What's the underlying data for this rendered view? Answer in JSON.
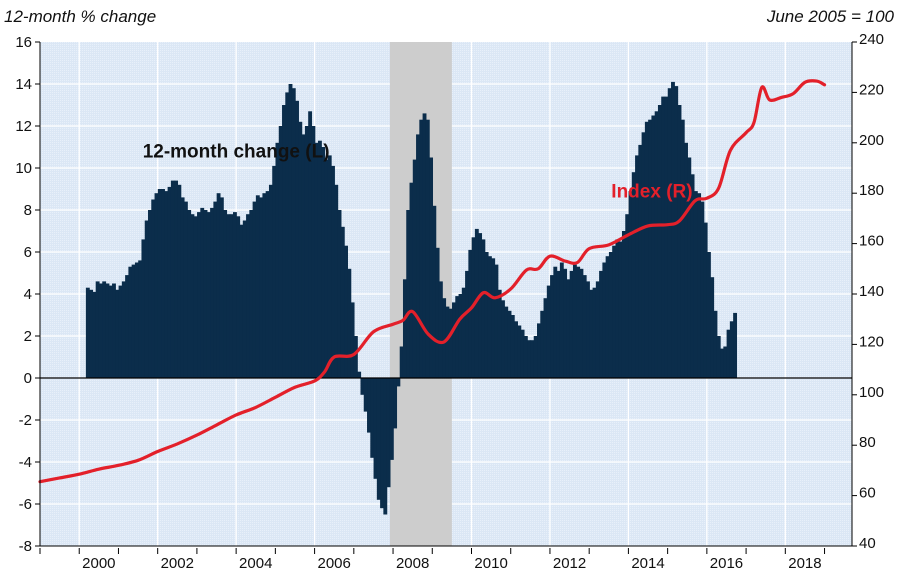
{
  "chart_data": {
    "type": "bar+line",
    "title": "",
    "left_axis_title": "12-month % change",
    "right_axis_title": "June 2005 = 100",
    "left_ylim": [
      -8,
      16
    ],
    "left_yticks": [
      -8,
      -6,
      -4,
      -2,
      0,
      2,
      4,
      6,
      8,
      10,
      12,
      14,
      16
    ],
    "right_ylim": [
      40,
      240
    ],
    "right_yticks": [
      40,
      60,
      80,
      100,
      120,
      140,
      160,
      180,
      200,
      220,
      240
    ],
    "xlim": [
      1999.0,
      2019.7
    ],
    "xticks": [
      1999,
      2000,
      2001,
      2002,
      2003,
      2004,
      2005,
      2006,
      2007,
      2008,
      2009,
      2010,
      2011,
      2012,
      2013,
      2014,
      2015,
      2016,
      2017,
      2018,
      2019
    ],
    "xtick_labels": [
      "2000",
      "2002",
      "2004",
      "2006",
      "2008",
      "2010",
      "2012",
      "2014",
      "2016",
      "2018"
    ],
    "grid": true,
    "recession": {
      "start": 2007.92,
      "end": 2009.5
    },
    "colors": {
      "bars": "#0b2d4b",
      "line": "#e3202a",
      "plot_bg": "#dfeaf7",
      "recession": "#cdcdcd",
      "grid": "#ffffff"
    },
    "series": [
      {
        "name": "12-month change (L)",
        "axis": "left",
        "kind": "bar",
        "start": 2000.17,
        "step_months": 1,
        "values": [
          4.3,
          4.2,
          4.1,
          4.6,
          4.5,
          4.6,
          4.5,
          4.4,
          4.5,
          4.2,
          4.4,
          4.6,
          4.9,
          5.3,
          5.4,
          5.5,
          5.6,
          6.6,
          7.5,
          8.0,
          8.5,
          8.8,
          9.0,
          9.0,
          8.9,
          9.1,
          9.4,
          9.4,
          9.2,
          8.6,
          8.4,
          8.0,
          7.8,
          7.7,
          7.9,
          8.1,
          8.0,
          7.9,
          8.1,
          8.4,
          8.8,
          8.6,
          8.0,
          7.8,
          7.8,
          7.9,
          7.7,
          7.3,
          7.5,
          7.8,
          8.0,
          8.4,
          8.7,
          8.6,
          8.8,
          8.9,
          9.2,
          10.1,
          11.2,
          12.0,
          13.0,
          13.6,
          14.0,
          13.8,
          13.2,
          12.2,
          11.6,
          12.0,
          12.7,
          12.0,
          11.2,
          11.3,
          11.0,
          10.4,
          10.6,
          10.1,
          9.2,
          8.0,
          7.2,
          6.3,
          5.2,
          3.6,
          2.0,
          0.3,
          -0.8,
          -1.6,
          -2.6,
          -3.8,
          -4.8,
          -5.8,
          -6.2,
          -6.5,
          -5.2,
          -3.9,
          -2.4,
          -0.4,
          1.5,
          4.7,
          8.0,
          9.3,
          10.4,
          11.6,
          12.3,
          12.6,
          12.3,
          10.5,
          8.2,
          6.2,
          4.6,
          3.8,
          3.4,
          3.3,
          3.6,
          3.9,
          4.0,
          4.3,
          5.1,
          6.1,
          6.7,
          7.1,
          6.9,
          6.6,
          6.0,
          5.8,
          5.7,
          5.4,
          4.2,
          3.7,
          3.4,
          3.2,
          3.0,
          2.7,
          2.5,
          2.3,
          2.0,
          1.8,
          1.8,
          2.0,
          2.6,
          3.2,
          3.8,
          4.4,
          4.9,
          5.3,
          5.1,
          5.5,
          5.2,
          4.7,
          5.1,
          5.4,
          5.3,
          5.2,
          4.9,
          4.6,
          4.2,
          4.3,
          4.6,
          5.1,
          5.5,
          5.8,
          6.0,
          6.3,
          6.6,
          6.5,
          7.0,
          7.8,
          8.9,
          9.8,
          10.6,
          11.1,
          11.7,
          12.2,
          12.3,
          12.5,
          12.7,
          13.0,
          13.4,
          13.4,
          13.8,
          14.1,
          13.9,
          13.0,
          12.3,
          11.2,
          10.5,
          9.7,
          8.9,
          8.8,
          8.4,
          7.4,
          6.0,
          4.8,
          3.2,
          2.0,
          1.4,
          1.5,
          2.3,
          2.7,
          3.1
        ]
      },
      {
        "name": "Index (R)",
        "axis": "right",
        "kind": "line",
        "x": [
          1999.0,
          1999.5,
          2000.0,
          2000.5,
          2001.0,
          2001.5,
          2002.0,
          2002.5,
          2003.0,
          2003.5,
          2004.0,
          2004.5,
          2005.0,
          2005.5,
          2006.0,
          2006.25,
          2006.5,
          2007.0,
          2007.5,
          2008.0,
          2008.25,
          2008.5,
          2008.9,
          2009.3,
          2009.7,
          2010.0,
          2010.3,
          2010.6,
          2011.0,
          2011.4,
          2011.7,
          2012.0,
          2012.4,
          2012.7,
          2013.0,
          2013.5,
          2014.0,
          2014.5,
          2015.0,
          2015.3,
          2015.7,
          2016.0,
          2016.3,
          2016.6,
          2017.0,
          2017.2,
          2017.4,
          2017.6,
          2017.9,
          2018.2,
          2018.5,
          2018.8,
          2019.0
        ],
        "values": [
          65.5,
          67,
          68.5,
          70.5,
          72,
          74,
          77.5,
          80.5,
          84,
          88,
          92,
          95,
          99,
          103,
          105.5,
          109,
          115,
          116,
          125,
          128,
          129.5,
          133,
          124,
          121,
          130,
          134.5,
          140.5,
          138.5,
          142,
          149.5,
          150,
          155,
          153,
          152.5,
          158,
          159.5,
          163.5,
          167,
          167.5,
          169,
          177,
          178,
          182,
          197,
          204,
          208,
          222,
          217,
          218,
          219.5,
          224,
          224.5,
          223
        ]
      }
    ],
    "annotations": [
      {
        "text": "12-month change (L)",
        "color": "#111111",
        "x": 2004.0,
        "y_left": 10.5
      },
      {
        "text": "Index (R)",
        "color": "#e3202a",
        "x": 2014.6,
        "y_left": 8.6
      }
    ]
  }
}
